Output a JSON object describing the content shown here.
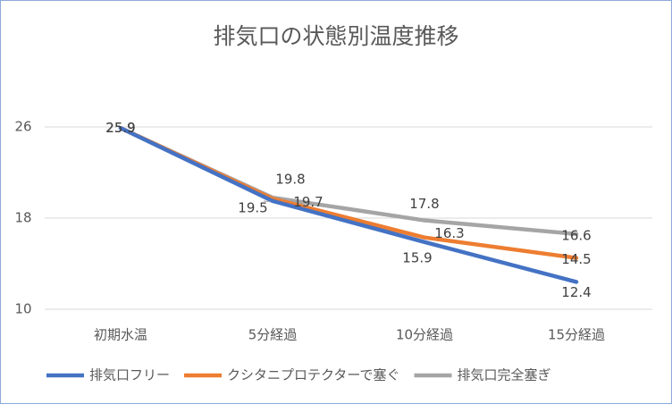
{
  "chart_data": {
    "type": "line",
    "title": "排気口の状態別温度推移",
    "categories": [
      "初期水温",
      "5分経過",
      "10分経過",
      "15分経過"
    ],
    "series": [
      {
        "name": "排気口フリー",
        "color": "#4472c4",
        "values": [
          25.9,
          19.5,
          15.9,
          12.4
        ]
      },
      {
        "name": "クシタニプロテクターで塞ぐ",
        "color": "#ed7d31",
        "values": [
          25.9,
          19.7,
          16.3,
          14.5
        ]
      },
      {
        "name": "排気口完全塞ぎ",
        "color": "#a5a5a5",
        "values": [
          25.9,
          19.8,
          17.8,
          16.6
        ]
      }
    ],
    "ylim": [
      10,
      26
    ],
    "yticks": [
      10,
      18,
      26
    ],
    "grid": true,
    "legend": "bottom"
  }
}
